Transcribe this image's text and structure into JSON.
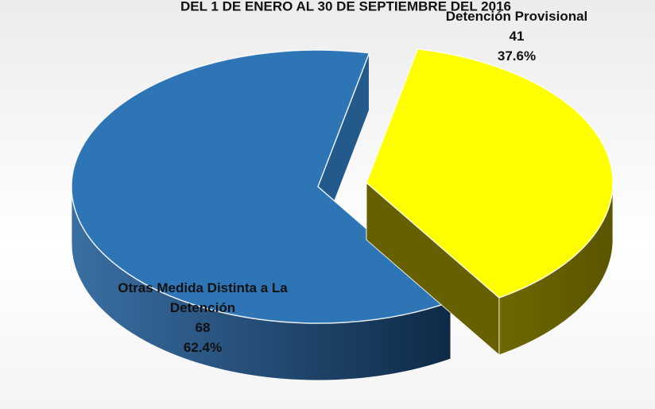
{
  "chart_data": {
    "type": "pie3d",
    "title": "DEL 1 DE ENERO AL 30 DE SEPTIEMBRE DEL 2016",
    "categories": [
      "Detención Provisional",
      "Otras Medida Distinta a La Detención"
    ],
    "values": [
      41,
      68
    ],
    "percents": [
      {
        "value": 37.6,
        "label": "37.6%"
      },
      {
        "value": 62.4,
        "label": "62.4%"
      }
    ],
    "colors": [
      "#ffff00",
      "#2e75b6"
    ]
  }
}
